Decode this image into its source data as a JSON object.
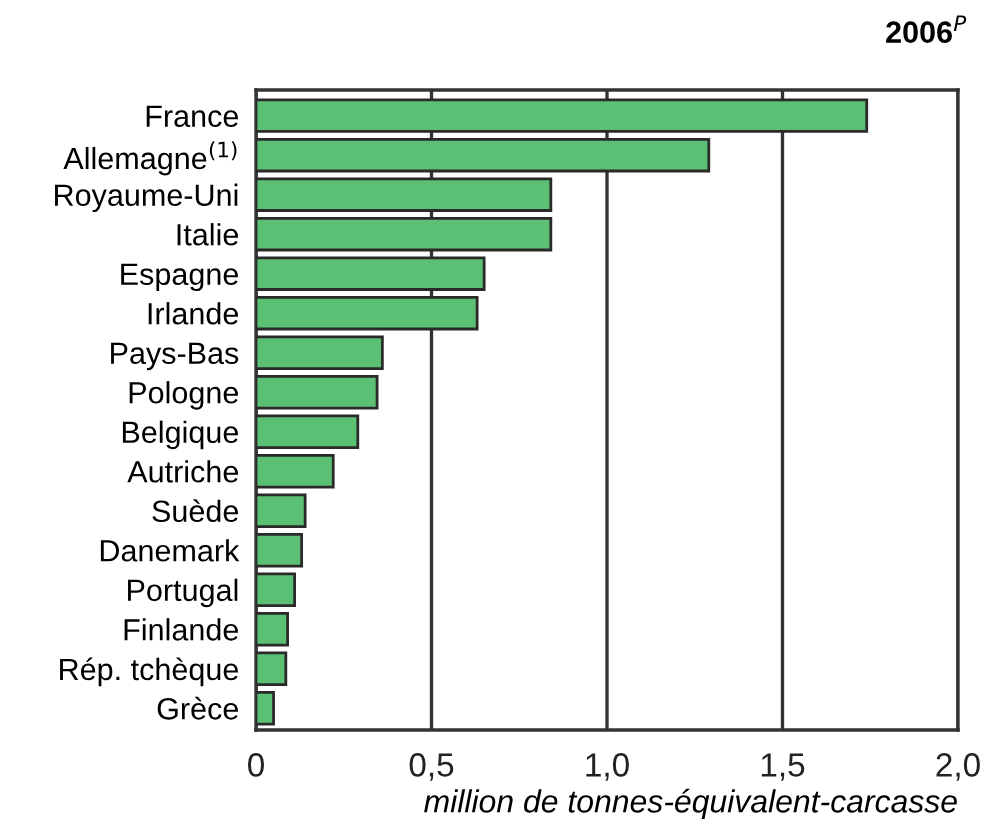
{
  "chart_data": {
    "type": "bar",
    "orientation": "horizontal",
    "title": "2006$^{P}$",
    "xlabel": "million de tonnes-équivalent-carcasse",
    "categories": [
      "France",
      "Allemagne$^{(1)}$",
      "Royaume-Uni",
      "Italie",
      "Espagne",
      "Irlande",
      "Pays-Bas",
      "Pologne",
      "Belgique",
      "Autriche",
      "Suède",
      "Danemark",
      "Portugal",
      "Finlande",
      "Rép. tchèque",
      "Grèce"
    ],
    "values": [
      1.74,
      1.29,
      0.84,
      0.84,
      0.65,
      0.63,
      0.36,
      0.345,
      0.29,
      0.22,
      0.14,
      0.13,
      0.11,
      0.09,
      0.085,
      0.05
    ],
    "color": "#5bbf74",
    "xlim": [
      0,
      2.0
    ],
    "xticks": [
      0,
      {
        "value": 0.5,
        "label": "0,5"
      },
      {
        "value": 1.0,
        "label": "1,0"
      },
      {
        "value": 1.5,
        "label": "1,5"
      },
      {
        "value": 2.0,
        "label": "2,0"
      }
    ],
    "grid": "x"
  }
}
